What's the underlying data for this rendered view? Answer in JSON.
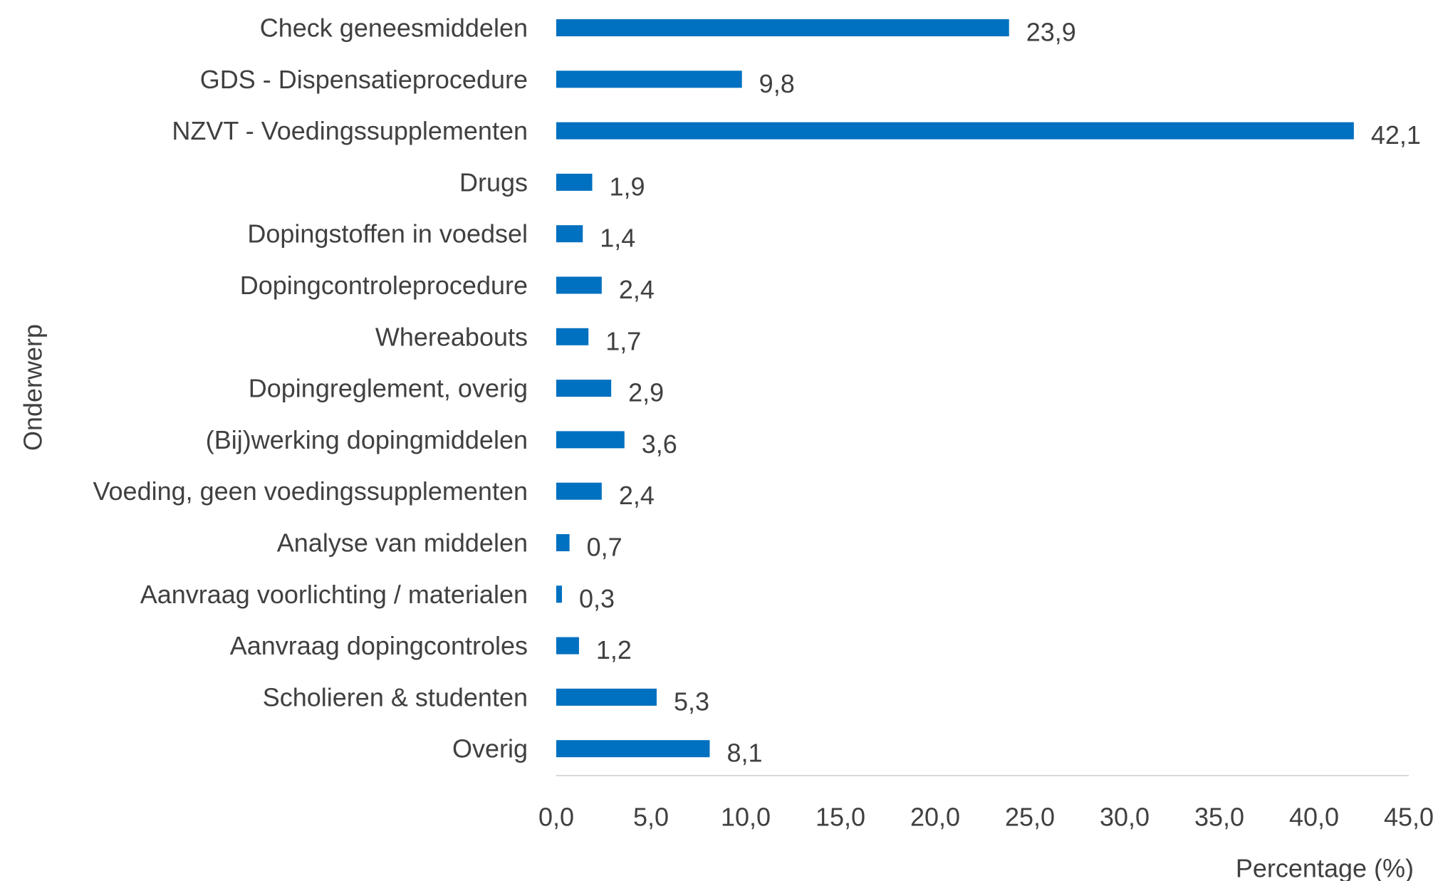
{
  "chart_data": {
    "type": "bar",
    "orientation": "horizontal",
    "categories": [
      "Check geneesmiddelen",
      "GDS - Dispensatieprocedure",
      "NZVT - Voedingssupplementen",
      "Drugs",
      "Dopingstoffen in voedsel",
      "Dopingcontroleprocedure",
      "Whereabouts",
      "Dopingreglement, overig",
      "(Bij)werking dopingmiddelen",
      "Voeding, geen voedingssupplementen",
      "Analyse van middelen",
      "Aanvraag voorlichting / materialen",
      "Aanvraag dopingcontroles",
      "Scholieren & studenten",
      "Overig"
    ],
    "values": [
      23.9,
      9.8,
      42.1,
      1.9,
      1.4,
      2.4,
      1.7,
      2.9,
      3.6,
      2.4,
      0.7,
      0.3,
      1.2,
      5.3,
      8.1
    ],
    "value_labels": [
      "23,9",
      "9,8",
      "42,1",
      "1,9",
      "1,4",
      "2,4",
      "1,7",
      "2,9",
      "3,6",
      "2,4",
      "0,7",
      "0,3",
      "1,2",
      "5,3",
      "8,1"
    ],
    "xticks": [
      "0,0",
      "5,0",
      "10,0",
      "15,0",
      "20,0",
      "25,0",
      "30,0",
      "35,0",
      "40,0",
      "45,0"
    ],
    "xlim": [
      0,
      45
    ],
    "xlabel": "Percentage (%)",
    "ylabel": "Onderwerp",
    "title": "",
    "grid": false,
    "legend": "none",
    "bar_color": "#0070C0",
    "text_color": "#404040",
    "axis_color": "#D9D9D9"
  }
}
